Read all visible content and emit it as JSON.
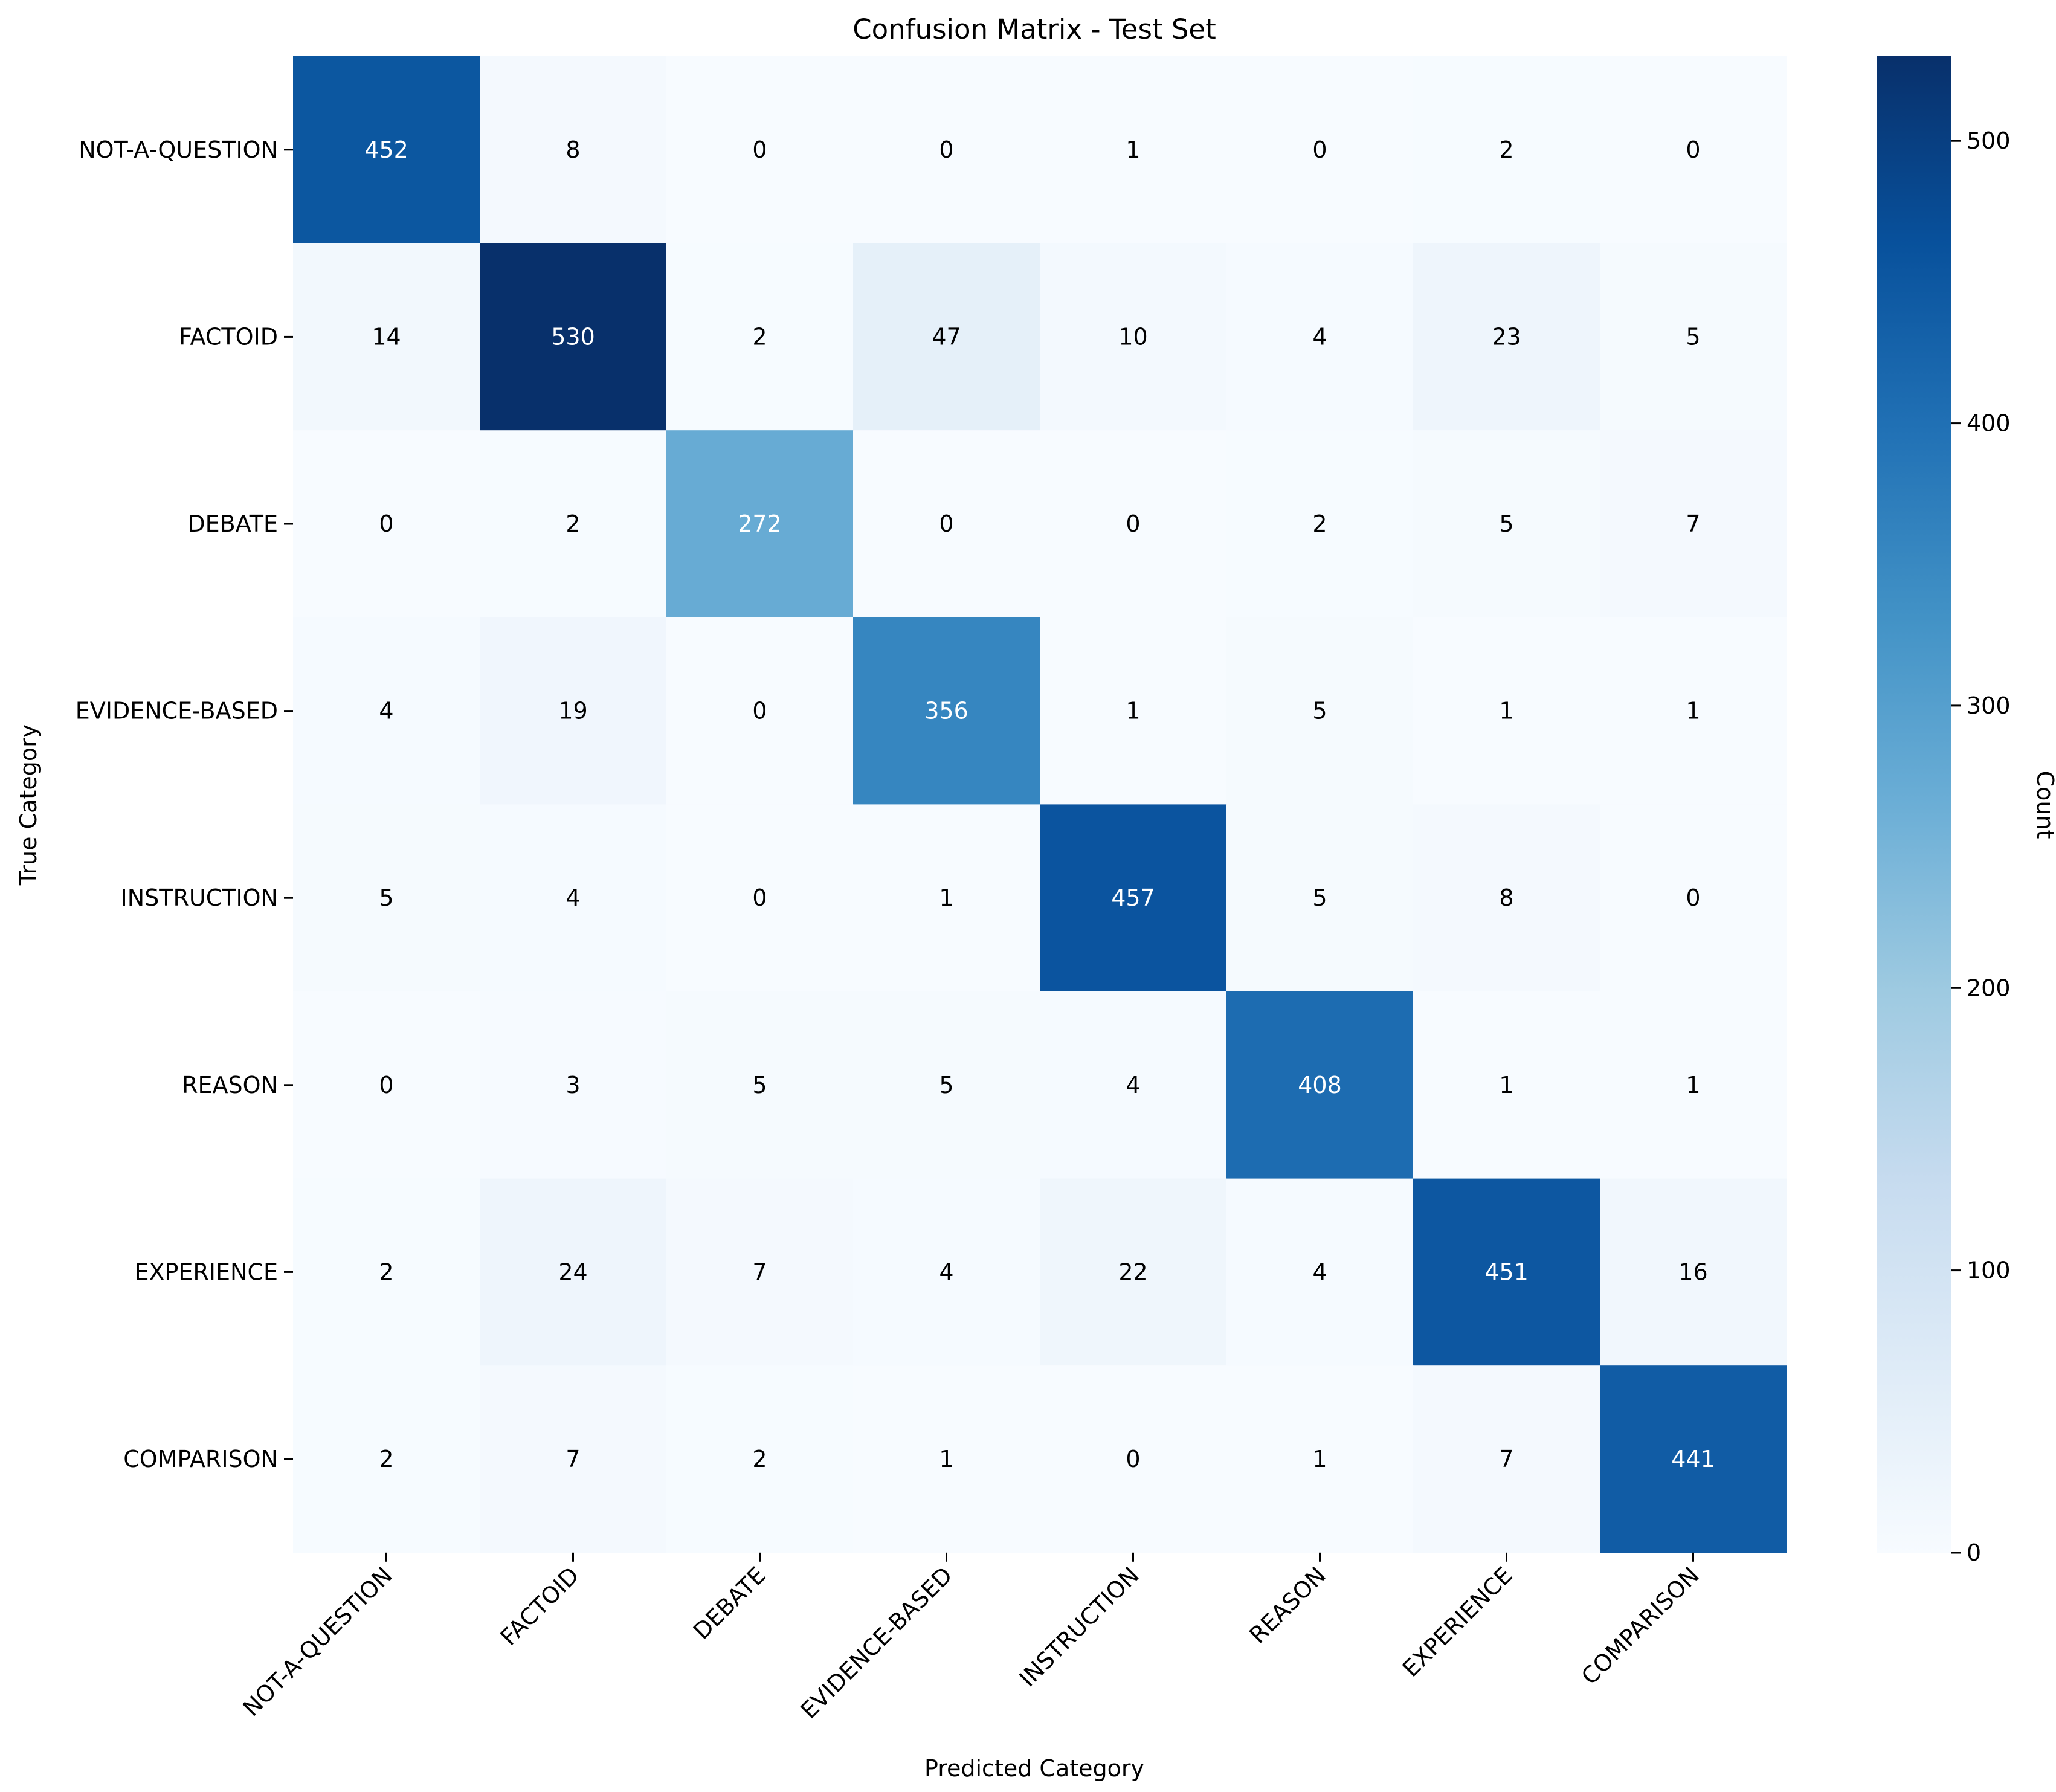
{
  "chart_data": {
    "type": "heatmap",
    "title": "Confusion Matrix - Test Set",
    "xlabel": "Predicted Category",
    "ylabel": "True Category",
    "x_categories": [
      "NOT-A-QUESTION",
      "FACTOID",
      "DEBATE",
      "EVIDENCE-BASED",
      "INSTRUCTION",
      "REASON",
      "EXPERIENCE",
      "COMPARISON"
    ],
    "y_categories": [
      "NOT-A-QUESTION",
      "FACTOID",
      "DEBATE",
      "EVIDENCE-BASED",
      "INSTRUCTION",
      "REASON",
      "EXPERIENCE",
      "COMPARISON"
    ],
    "values": [
      [
        452,
        8,
        0,
        0,
        1,
        0,
        2,
        0
      ],
      [
        14,
        530,
        2,
        47,
        10,
        4,
        23,
        5
      ],
      [
        0,
        2,
        272,
        0,
        0,
        2,
        5,
        7
      ],
      [
        4,
        19,
        0,
        356,
        1,
        5,
        1,
        1
      ],
      [
        5,
        4,
        0,
        1,
        457,
        5,
        8,
        0
      ],
      [
        0,
        3,
        5,
        5,
        4,
        408,
        1,
        1
      ],
      [
        2,
        24,
        7,
        4,
        22,
        4,
        451,
        16
      ],
      [
        2,
        7,
        2,
        1,
        0,
        1,
        7,
        441
      ]
    ],
    "colormap": "Blues",
    "colormap_stops": [
      "#f7fbff",
      "#deebf7",
      "#c6dbef",
      "#9ecae1",
      "#6baed6",
      "#4292c6",
      "#2171b5",
      "#08519c",
      "#08306b"
    ],
    "value_range": [
      0,
      530
    ],
    "colorbar": {
      "label": "Count",
      "ticks": [
        0,
        100,
        200,
        300,
        400,
        500
      ]
    },
    "grid": false,
    "legend": "colorbar right"
  }
}
